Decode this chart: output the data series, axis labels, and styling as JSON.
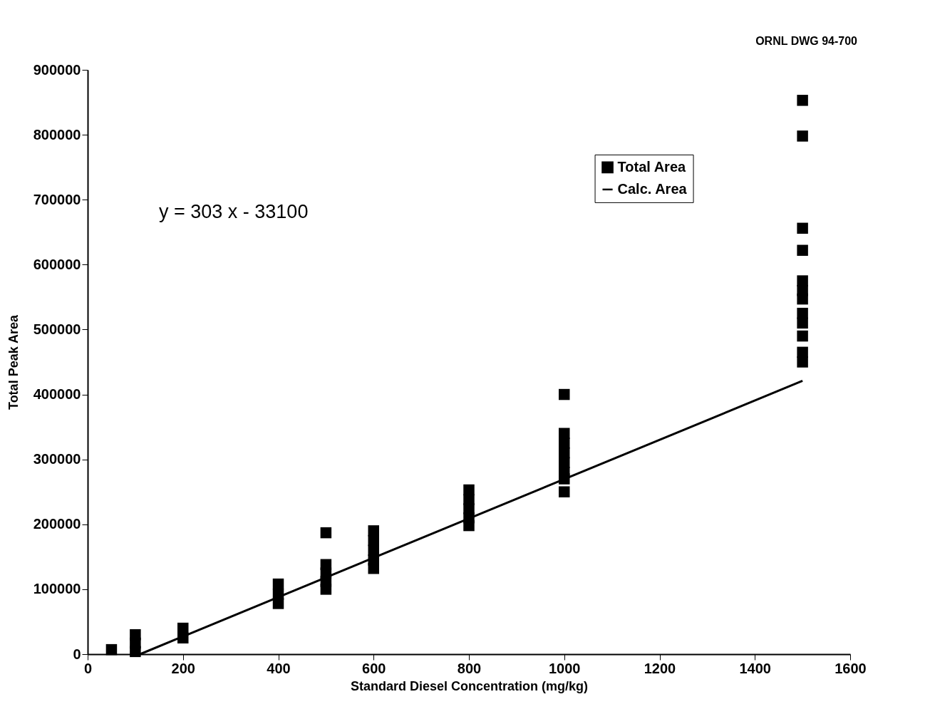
{
  "chart_data": {
    "type": "scatter",
    "xlabel": "Standard Diesel Concentration (mg/kg)",
    "ylabel": "Total Peak Area",
    "xlim": [
      0,
      1600
    ],
    "xticks": [
      0,
      200,
      400,
      600,
      800,
      1000,
      1200,
      1400,
      1600
    ],
    "ylim": [
      0,
      900000
    ],
    "yticks": [
      0,
      100000,
      200000,
      300000,
      400000,
      500000,
      600000,
      700000,
      800000,
      900000
    ],
    "grid": false,
    "legend": "top right",
    "annotations": [
      "ORNL DWG 94-700",
      "y = 303 x - 33100"
    ],
    "series": [
      {
        "name": "Total Area",
        "marker": "square",
        "color": "#000000",
        "x": [
          50,
          100,
          100,
          100,
          200,
          200,
          400,
          400,
          400,
          500,
          500,
          500,
          500,
          500,
          600,
          600,
          600,
          600,
          600,
          800,
          800,
          800,
          800,
          800,
          1000,
          1000,
          1000,
          1000,
          1000,
          1000,
          1000,
          1000,
          1500,
          1500,
          1500,
          1500,
          1500,
          1500,
          1500,
          1500,
          1500,
          1500,
          1500,
          1500
        ],
        "values": [
          7000,
          30000,
          17000,
          4000,
          40000,
          25000,
          108000,
          92000,
          78000,
          187000,
          138000,
          125000,
          112000,
          100000,
          190000,
          175000,
          160000,
          145000,
          132000,
          253000,
          238000,
          224000,
          210000,
          198000,
          400000,
          340000,
          325000,
          310000,
          295000,
          280000,
          270000,
          250000,
          853000,
          798000,
          656000,
          622000,
          575000,
          560000,
          547000,
          525000,
          510000,
          490000,
          465000,
          450000
        ]
      },
      {
        "name": "Calc. Area",
        "type": "line",
        "marker": "none",
        "color": "#000000",
        "x": [
          110,
          1500
        ],
        "values": [
          0,
          421000
        ]
      }
    ]
  }
}
